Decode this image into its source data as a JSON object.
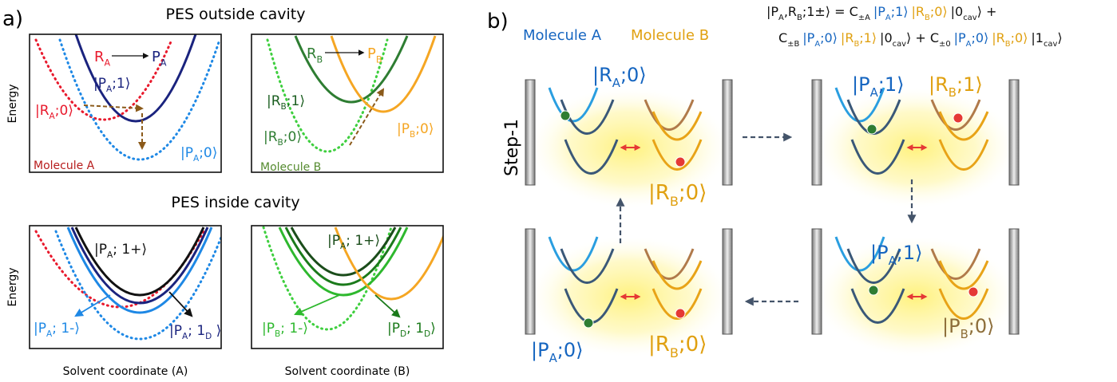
{
  "panel_a": {
    "label": "a)",
    "outside_title": "PES outside cavity",
    "inside_title": "PES inside cavity",
    "y_labels": [
      "Energy",
      "Energy"
    ],
    "x_labels": [
      "Solvent coordinate  (A)",
      "Solvent coordinate (B)"
    ],
    "boxes": [
      {
        "labels": [
          {
            "parts": [
              "R",
              {
                "sub": "A"
              }
            ],
            "color": "#e8192c"
          },
          {
            "parts": [
              "P",
              {
                "sub": "A"
              }
            ],
            "color": "#1a237e"
          },
          {
            "parts": [
              "|P",
              {
                "sub": "A"
              },
              ";1⟩"
            ],
            "color": "#1a237e"
          },
          {
            "parts": [
              "|R",
              {
                "sub": "A"
              },
              ";0⟩"
            ],
            "color": "#e8192c"
          },
          {
            "parts": [
              "|P",
              {
                "sub": "A"
              },
              ";0⟩"
            ],
            "color": "#1e88e5"
          },
          {
            "parts": [
              "Molecule A"
            ],
            "color": "#b71c1c"
          }
        ]
      },
      {
        "labels": [
          {
            "parts": [
              "R",
              {
                "sub": "B"
              }
            ],
            "color": "#2e7d32"
          },
          {
            "parts": [
              "P",
              {
                "sub": "B"
              }
            ],
            "color": "#f5a623"
          },
          {
            "parts": [
              "|R",
              {
                "sub": "B"
              },
              ";1⟩"
            ],
            "color": "#1b5e20"
          },
          {
            "parts": [
              "|R",
              {
                "sub": "B"
              },
              ";0⟩"
            ],
            "color": "#2e7d32"
          },
          {
            "parts": [
              "|P",
              {
                "sub": "B"
              },
              ";0⟩"
            ],
            "color": "#f5a623"
          },
          {
            "parts": [
              "Molecule B"
            ],
            "color": "#558b2f"
          }
        ]
      },
      {
        "labels": [
          {
            "parts": [
              "|P",
              {
                "sub": "A"
              },
              "; 1+⟩"
            ],
            "color": "#111111"
          },
          {
            "parts": [
              "|P",
              {
                "sub": "A"
              },
              "; 1-⟩"
            ],
            "color": "#1e88e5"
          },
          {
            "parts": [
              "|P",
              {
                "sub": "A"
              },
              "; 1",
              {
                "sub": "D"
              },
              " ⟩"
            ],
            "color": "#1a237e"
          }
        ]
      },
      {
        "labels": [
          {
            "parts": [
              "|P",
              {
                "sub": "A"
              },
              "; 1+⟩"
            ],
            "color": "#1b4d1b"
          },
          {
            "parts": [
              "|P",
              {
                "sub": "B"
              },
              "; 1-⟩"
            ],
            "color": "#2eb82e"
          },
          {
            "parts": [
              "|P",
              {
                "sub": "D"
              },
              "; 1",
              {
                "sub": "D"
              },
              "⟩"
            ],
            "color": "#1b7a1b"
          }
        ]
      }
    ]
  },
  "panel_b": {
    "label": "b)",
    "molecule_a": "Molecule A",
    "molecule_b": "Molecule B",
    "step": "Step-1",
    "equation": [
      [
        {
          "color": "#111111",
          "parts": [
            "|P",
            {
              "sub": "A"
            },
            ",R",
            {
              "sub": "B"
            },
            ";1±⟩ = C",
            {
              "sub": "±A"
            }
          ]
        },
        {
          "color": "#1565c0",
          "parts": [
            "|P",
            {
              "sub": "A"
            },
            ";1⟩"
          ]
        },
        {
          "color": "#e0a010",
          "parts": [
            "|R",
            {
              "sub": "B"
            },
            ";0⟩"
          ]
        },
        {
          "color": "#111111",
          "parts": [
            "|0",
            {
              "sub": "cav"
            },
            "⟩ +"
          ]
        }
      ],
      [
        {
          "color": "#111111",
          "parts": [
            "C",
            {
              "sub": "±B"
            }
          ]
        },
        {
          "color": "#1565c0",
          "parts": [
            "|P",
            {
              "sub": "A"
            },
            ";0⟩"
          ]
        },
        {
          "color": "#e0a010",
          "parts": [
            "|R",
            {
              "sub": "B"
            },
            ";1⟩"
          ]
        },
        {
          "color": "#111111",
          "parts": [
            "|0",
            {
              "sub": "cav"
            },
            "⟩ + C",
            {
              "sub": "±0"
            }
          ]
        },
        {
          "color": "#1565c0",
          "parts": [
            "|P",
            {
              "sub": "A"
            },
            ";0⟩"
          ]
        },
        {
          "color": "#e0a010",
          "parts": [
            "|R",
            {
              "sub": "B"
            },
            ";0⟩"
          ]
        },
        {
          "color": "#111111",
          "parts": [
            "|1",
            {
              "sub": "cav"
            },
            "⟩"
          ]
        }
      ]
    ],
    "cell_labels": [
      {
        "parts": [
          "|R",
          {
            "sub": "A"
          },
          ";0⟩"
        ],
        "color": "#1565c0"
      },
      {
        "parts": [
          "|R",
          {
            "sub": "B"
          },
          ";0⟩"
        ],
        "color": "#e0a010"
      },
      {
        "parts": [
          "|P",
          {
            "sub": "A"
          },
          ";1⟩"
        ],
        "color": "#1565c0"
      },
      {
        "parts": [
          "|R",
          {
            "sub": "B"
          },
          ";1⟩"
        ],
        "color": "#e0a010"
      },
      {
        "parts": [
          "|P",
          {
            "sub": "A"
          },
          ";1⟩"
        ],
        "color": "#1565c0"
      },
      {
        "parts": [
          "|P",
          {
            "sub": "B"
          },
          ";0⟩"
        ],
        "color": "#8d6e3a"
      },
      {
        "parts": [
          "|P",
          {
            "sub": "A"
          },
          ";0⟩"
        ],
        "color": "#1565c0"
      },
      {
        "parts": [
          "|R",
          {
            "sub": "B"
          },
          ";0⟩"
        ],
        "color": "#e0a010"
      }
    ]
  }
}
